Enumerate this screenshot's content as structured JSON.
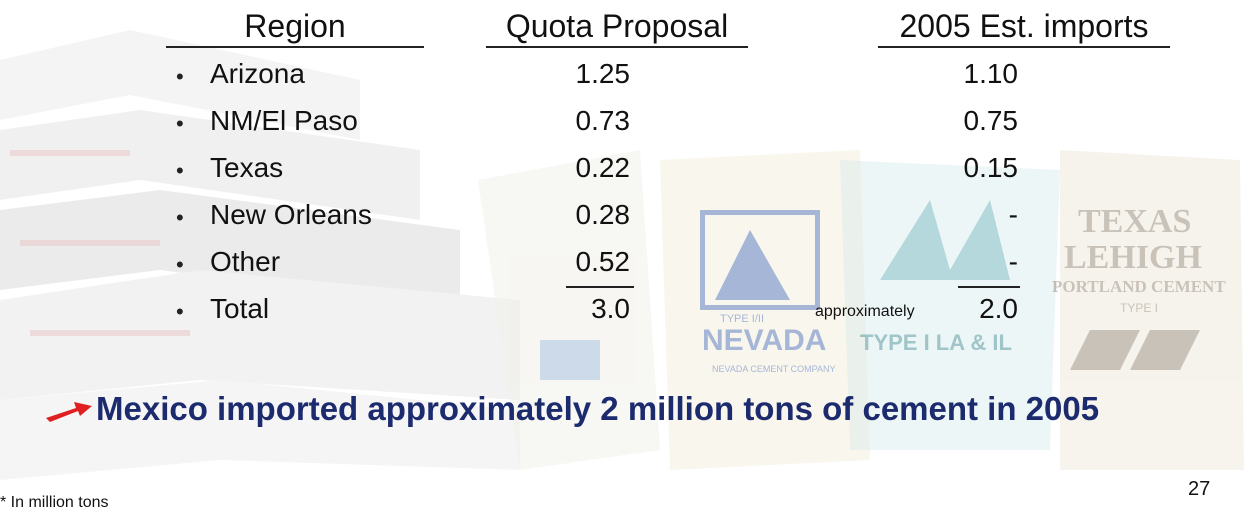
{
  "headers": {
    "region": "Region",
    "quota": "Quota Proposal",
    "imports": "2005 Est. imports"
  },
  "rows": [
    {
      "region": "Arizona",
      "quota": "1.25",
      "imports": "1.10"
    },
    {
      "region": "NM/El Paso",
      "quota": "0.73",
      "imports": "0.75"
    },
    {
      "region": "Texas",
      "quota": "0.22",
      "imports": "0.15"
    },
    {
      "region": "New Orleans",
      "quota": "0.28",
      "imports": "-"
    },
    {
      "region": "Other",
      "quota": "0.52",
      "imports": "-"
    },
    {
      "region": "Total",
      "quota": "3.0",
      "imports": "2.0",
      "imports_prefix": "approximately"
    }
  ],
  "bullet_glyph": "•",
  "headline": "Mexico imported approximately 2 million tons of cement in 2005",
  "footnote": "* In million tons",
  "page_number": "27",
  "background_bag_labels": {
    "nevada_type": "TYPE I/II",
    "nevada_brand": "NEVADA",
    "nevada_company": "NEVADA CEMENT COMPANY",
    "texas_line1": "TEXAS",
    "texas_line2": "LEHIGH",
    "texas_line3": "PORTLAND CEMENT",
    "texas_type": "TYPE I",
    "middle_bag": "TYPE I LA & IL"
  },
  "colors": {
    "headline": "#1c2a6e",
    "arrow": "#e02020",
    "text": "#111111"
  },
  "icons": {
    "arrow": "red-arrow-icon"
  }
}
